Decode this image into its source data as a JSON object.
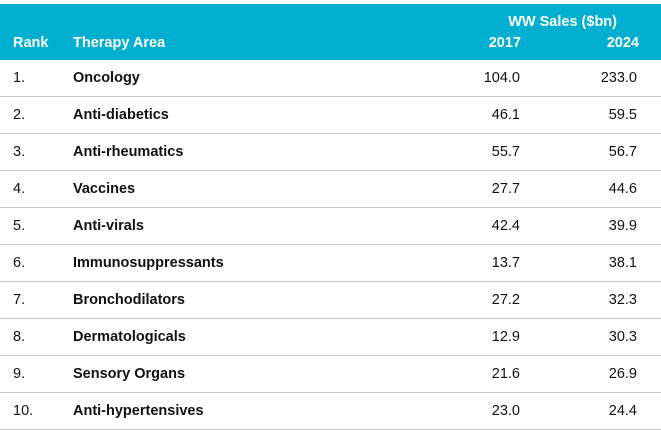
{
  "chart_data": {
    "type": "table",
    "headers": {
      "rank": "Rank",
      "area": "Therapy Area",
      "sales_group": "WW Sales ($bn)",
      "year1": "2017",
      "year2": "2024"
    },
    "rows": [
      {
        "rank": "1.",
        "area": "Oncology",
        "v2017": "104.0",
        "v2024": "233.0"
      },
      {
        "rank": "2.",
        "area": "Anti-diabetics",
        "v2017": "46.1",
        "v2024": "59.5"
      },
      {
        "rank": "3.",
        "area": "Anti-rheumatics",
        "v2017": "55.7",
        "v2024": "56.7"
      },
      {
        "rank": "4.",
        "area": "Vaccines",
        "v2017": "27.7",
        "v2024": "44.6"
      },
      {
        "rank": "5.",
        "area": "Anti-virals",
        "v2017": "42.4",
        "v2024": "39.9"
      },
      {
        "rank": "6.",
        "area": "Immunosuppressants",
        "v2017": "13.7",
        "v2024": "38.1"
      },
      {
        "rank": "7.",
        "area": "Bronchodilators",
        "v2017": "27.2",
        "v2024": "32.3"
      },
      {
        "rank": "8.",
        "area": "Dermatologicals",
        "v2017": "12.9",
        "v2024": "30.3"
      },
      {
        "rank": "9.",
        "area": "Sensory Organs",
        "v2017": "21.6",
        "v2024": "26.9"
      },
      {
        "rank": "10.",
        "area": "Anti-hypertensives",
        "v2017": "23.0",
        "v2024": "24.4"
      }
    ],
    "colors": {
      "header_bg": "#00aecf",
      "header_text": "#ffffff",
      "row_divider": "#c8c8c8"
    }
  }
}
